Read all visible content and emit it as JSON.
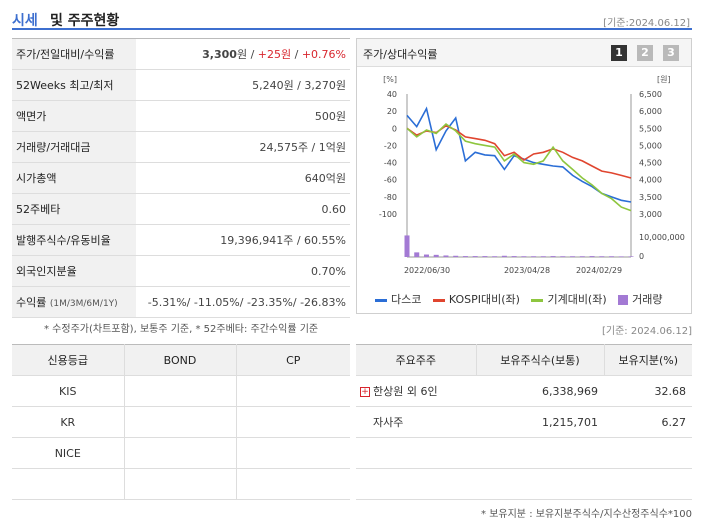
{
  "header": {
    "title_accent": "시세",
    "title_rest": "및 주주현황",
    "date": "[기준:2024.06.12]"
  },
  "info": {
    "rows": [
      {
        "label": "주가/전일대비/수익률",
        "price": "3,300",
        "unit": "원 / ",
        "change": "+25원",
        "sep": " / ",
        "rate": "+0.76%"
      },
      {
        "label": "52Weeks 최고/최저",
        "value": "5,240원 / 3,270원"
      },
      {
        "label": "액면가",
        "value": "500원"
      },
      {
        "label": "거래량/거래대금",
        "value": "24,575주 / 1억원"
      },
      {
        "label": "시가총액",
        "value": "640억원"
      },
      {
        "label": "52주베타",
        "value": "0.60"
      },
      {
        "label": "발행주식수/유동비율",
        "value": "19,396,941주 / 60.55%"
      },
      {
        "label": "외국인지분율",
        "value": "0.70%"
      },
      {
        "label": "수익률",
        "label_small": "(1M/3M/6M/1Y)",
        "value": "-5.31%/ -11.05%/ -23.35%/ -26.83%"
      }
    ],
    "note": "* 수정주가(차트포함), 보통주 기준, * 52주베타: 주간수익률 기준"
  },
  "chart_panel": {
    "title": "주가/상대수익률",
    "pages": [
      "1",
      "2",
      "3"
    ],
    "active_page": "1",
    "accent": "#3d6fcf"
  },
  "chart_data": {
    "type": "line",
    "left_axis_unit": "[%]",
    "right_axis_unit": "[원]",
    "y_left": {
      "ticks": [
        40,
        20,
        0,
        -20,
        -40,
        -60,
        -80,
        -100
      ],
      "range": [
        -100,
        40
      ]
    },
    "y_right": {
      "ticks": [
        "6,500",
        "6,000",
        "5,500",
        "5,000",
        "4,500",
        "4,000",
        "3,500",
        "3,000"
      ],
      "range": [
        3000,
        6500
      ]
    },
    "volume_axis": {
      "ticks": [
        "10,000,000",
        "0"
      ],
      "range": [
        0,
        10000000
      ]
    },
    "x_labels": [
      "2022/06/30",
      "2023/04/28",
      "2024/02/29"
    ],
    "n_points": 24,
    "series": [
      {
        "name": "다스코",
        "color": "#2b6ed6",
        "values": [
          15,
          2,
          23,
          -25,
          -3,
          12,
          -38,
          -28,
          -31,
          -32,
          -48,
          -32,
          -36,
          -40,
          -42,
          -44,
          -45,
          -55,
          -62,
          -68,
          -76,
          -80,
          -84,
          -86
        ]
      },
      {
        "name": "KOSPI대비(좌)",
        "color": "#e0452f",
        "values": [
          0,
          -8,
          -3,
          -5,
          3,
          -2,
          -10,
          -12,
          -14,
          -18,
          -32,
          -28,
          -37,
          -30,
          -28,
          -24,
          -28,
          -34,
          -38,
          -44,
          -50,
          -52,
          -55,
          -58
        ]
      },
      {
        "name": "기계대비(좌)",
        "color": "#8ec63f",
        "values": [
          0,
          -10,
          -2,
          -6,
          5,
          -3,
          -15,
          -18,
          -20,
          -22,
          -38,
          -30,
          -40,
          -42,
          -38,
          -22,
          -38,
          -48,
          -58,
          -66,
          -76,
          -82,
          -92,
          -96
        ]
      }
    ],
    "volume": {
      "name": "거래량",
      "color": "#a37ad4",
      "values": [
        7000000,
        1500000,
        800000,
        700000,
        500000,
        400000,
        300000,
        300000,
        300000,
        250000,
        400000,
        300000,
        250000,
        250000,
        250000,
        300000,
        250000,
        250000,
        250000,
        300000,
        250000,
        250000,
        200000,
        200000
      ]
    }
  },
  "chart_date": "[기준: 2024.06.12]",
  "credit": {
    "headers": [
      "신용등급",
      "BOND",
      "CP"
    ],
    "rows": [
      [
        "KIS",
        "",
        ""
      ],
      [
        "KR",
        "",
        ""
      ],
      [
        "NICE",
        "",
        ""
      ],
      [
        "",
        "",
        ""
      ]
    ]
  },
  "holders": {
    "headers": [
      "주요주주",
      "보유주식수(보통)",
      "보유지분(%)"
    ],
    "rows": [
      {
        "name": "한상원 외 6인",
        "shares": "6,338,969",
        "pct": "32.68",
        "expand": "+"
      },
      {
        "name": "자사주",
        "shares": "1,215,701",
        "pct": "6.27"
      },
      {
        "name": "",
        "shares": "",
        "pct": ""
      },
      {
        "name": "",
        "shares": "",
        "pct": ""
      }
    ],
    "note": "* 보유지분 : 보유지분주식수/지수산정주식수*100"
  }
}
